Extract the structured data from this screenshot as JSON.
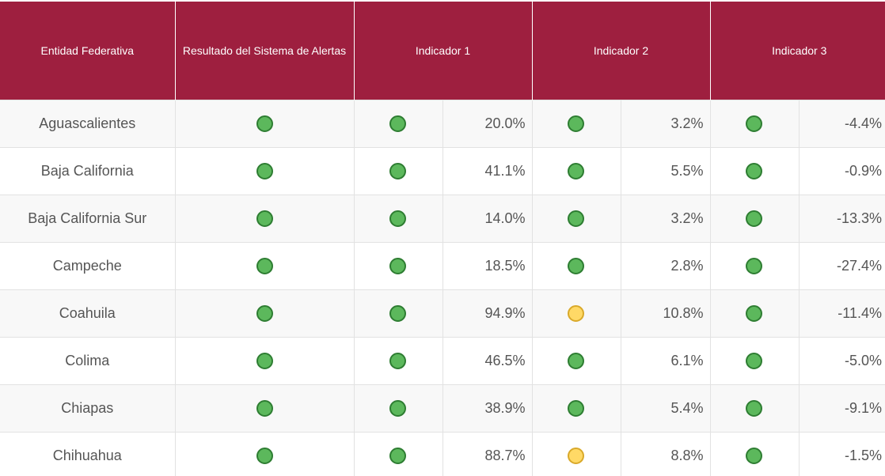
{
  "headers": {
    "entity": "Entidad Federativa",
    "result": "Resultado del Sistema de Alertas",
    "ind1": "Indicador 1",
    "ind2": "Indicador 2",
    "ind3": "Indicador 3"
  },
  "status_colors": {
    "green": "#5cb85c",
    "yellow": "#ffd966"
  },
  "rows": [
    {
      "name": "Aguascalientes",
      "result": "green",
      "i1_status": "green",
      "i1": "20.0%",
      "i2_status": "green",
      "i2": "3.2%",
      "i3_status": "green",
      "i3": "-4.4%"
    },
    {
      "name": "Baja California",
      "result": "green",
      "i1_status": "green",
      "i1": "41.1%",
      "i2_status": "green",
      "i2": "5.5%",
      "i3_status": "green",
      "i3": "-0.9%"
    },
    {
      "name": "Baja California Sur",
      "result": "green",
      "i1_status": "green",
      "i1": "14.0%",
      "i2_status": "green",
      "i2": "3.2%",
      "i3_status": "green",
      "i3": "-13.3%"
    },
    {
      "name": "Campeche",
      "result": "green",
      "i1_status": "green",
      "i1": "18.5%",
      "i2_status": "green",
      "i2": "2.8%",
      "i3_status": "green",
      "i3": "-27.4%"
    },
    {
      "name": "Coahuila",
      "result": "green",
      "i1_status": "green",
      "i1": "94.9%",
      "i2_status": "yellow",
      "i2": "10.8%",
      "i3_status": "green",
      "i3": "-11.4%"
    },
    {
      "name": "Colima",
      "result": "green",
      "i1_status": "green",
      "i1": "46.5%",
      "i2_status": "green",
      "i2": "6.1%",
      "i3_status": "green",
      "i3": "-5.0%"
    },
    {
      "name": "Chiapas",
      "result": "green",
      "i1_status": "green",
      "i1": "38.9%",
      "i2_status": "green",
      "i2": "5.4%",
      "i3_status": "green",
      "i3": "-9.1%"
    },
    {
      "name": "Chihuahua",
      "result": "green",
      "i1_status": "green",
      "i1": "88.7%",
      "i2_status": "yellow",
      "i2": "8.8%",
      "i3_status": "green",
      "i3": "-1.5%"
    }
  ]
}
